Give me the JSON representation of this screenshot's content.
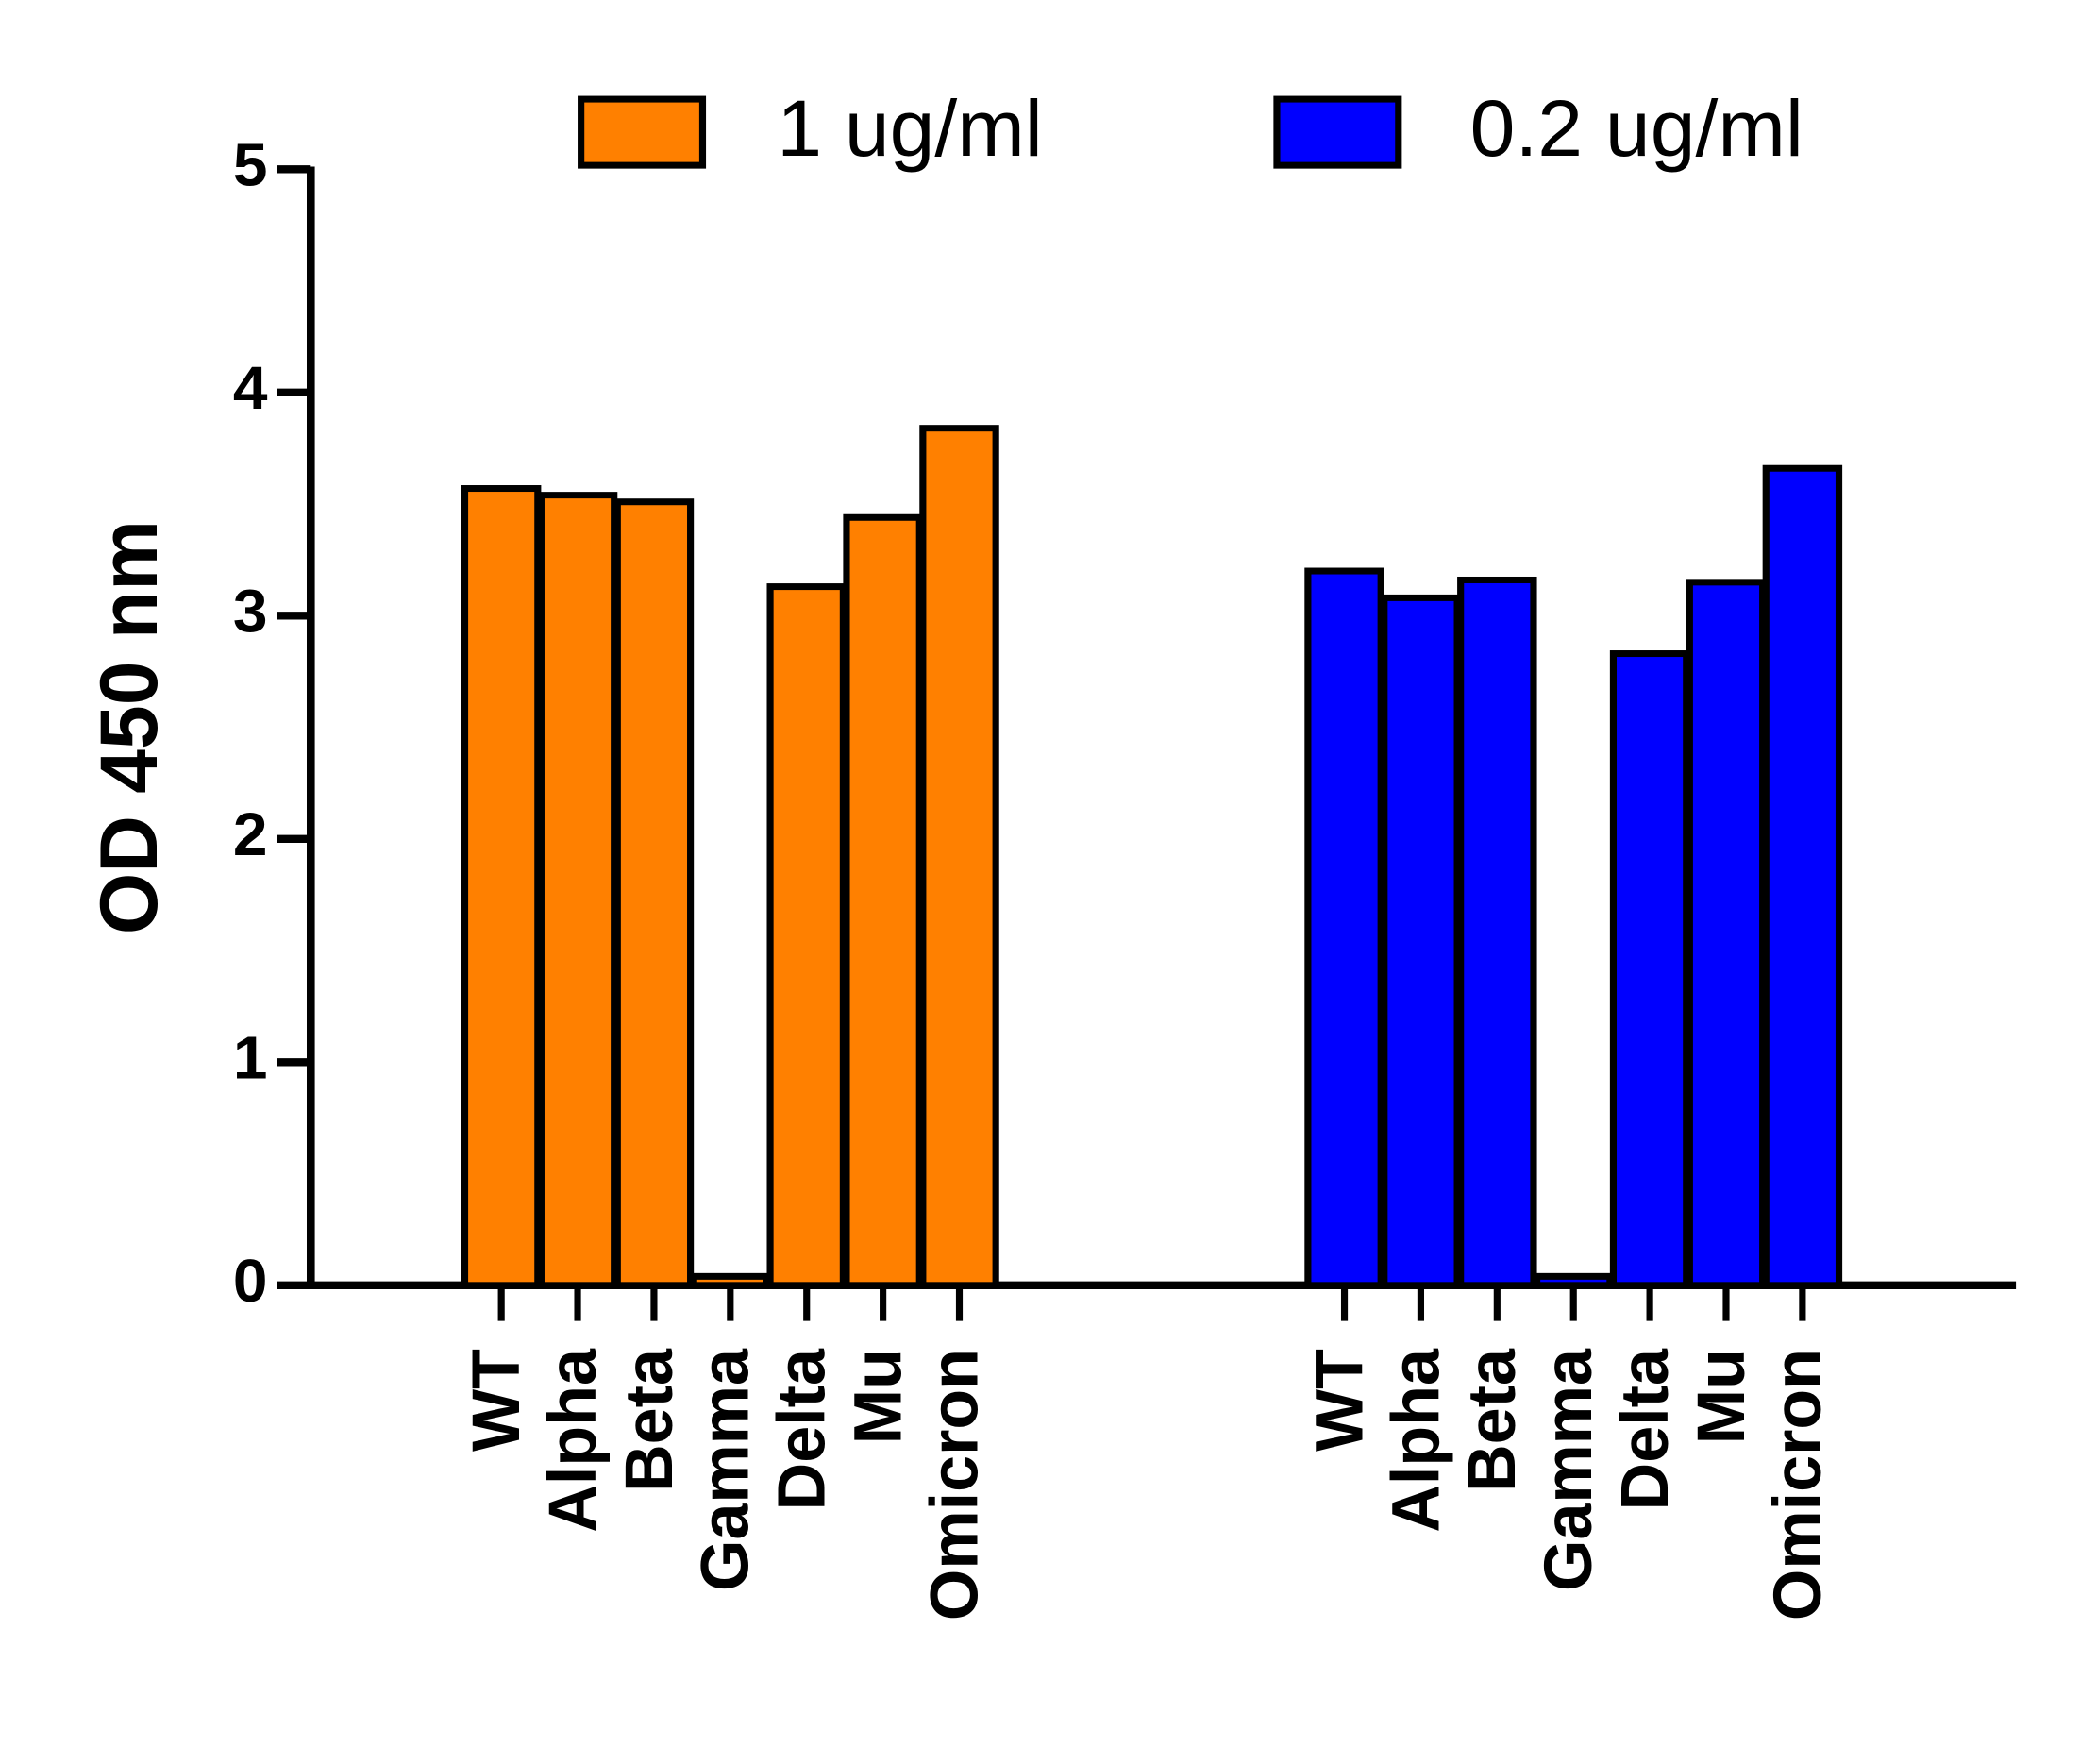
{
  "chart_data": {
    "type": "bar",
    "y_label": "OD 450 nm",
    "categories": [
      "WT",
      "Alpha",
      "Beta",
      "Gamma",
      "Delta",
      "Mu",
      "Omicron"
    ],
    "series": [
      {
        "name": "1 ug/ml",
        "color": "#ff8000",
        "values": [
          3.57,
          3.54,
          3.51,
          0.04,
          3.13,
          3.44,
          3.84
        ]
      },
      {
        "name": "0.2 ug/ml",
        "color": "#0000ff",
        "values": [
          3.2,
          3.08,
          3.16,
          0.04,
          2.83,
          3.15,
          3.66
        ]
      }
    ],
    "ylim": [
      0,
      5
    ],
    "yticks": [
      0,
      1,
      2,
      3,
      4,
      5
    ],
    "grid": false,
    "legend": "top"
  }
}
